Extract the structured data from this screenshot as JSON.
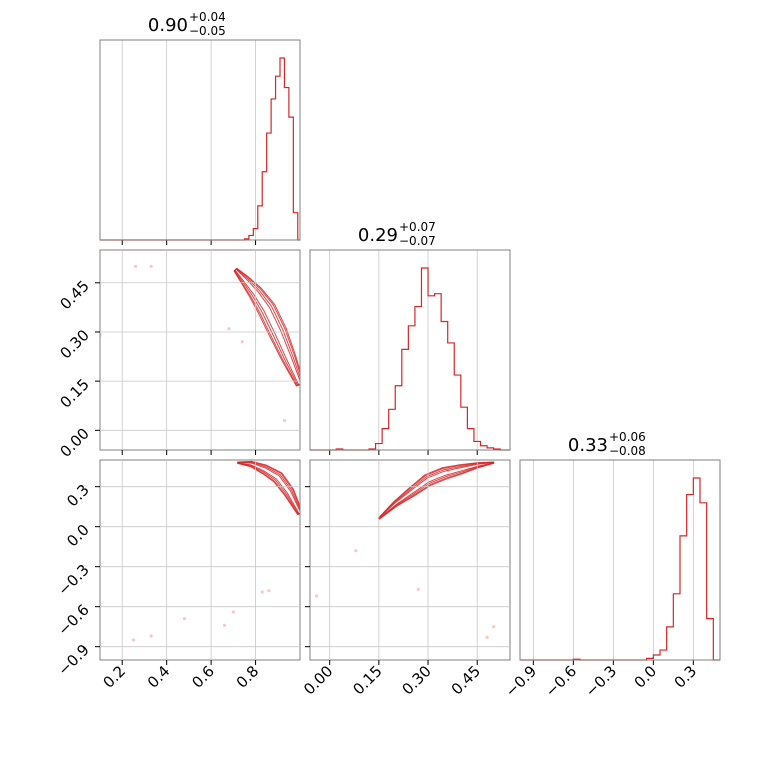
{
  "chart_data": {
    "type": "corner",
    "params": [
      {
        "title_main": "0.90",
        "title_plus": "+0.04",
        "title_minus": "−0.05",
        "range": [
          0.1,
          1.0
        ],
        "ticks": [
          0.2,
          0.4,
          0.6,
          0.8
        ],
        "tick_labels": [
          "0.2",
          "0.4",
          "0.6",
          "0.8"
        ],
        "hist": {
          "bins": [
            0.7,
            0.71,
            0.72,
            0.73,
            0.74,
            0.75,
            0.76,
            0.77,
            0.78,
            0.79,
            0.8,
            0.81,
            0.82,
            0.83,
            0.84,
            0.85,
            0.86,
            0.87,
            0.88,
            0.89,
            0.9,
            0.91,
            0.92,
            0.93,
            0.94,
            0.95,
            0.96,
            0.97,
            0.98,
            0.99,
            1.0
          ],
          "counts": [
            0,
            0,
            0,
            0,
            0,
            0.5,
            0.5,
            2,
            2,
            5,
            5,
            15,
            15,
            30,
            30,
            47,
            47,
            62,
            62,
            72,
            72,
            80,
            80,
            67,
            67,
            54,
            54,
            12,
            12,
            0
          ]
        }
      },
      {
        "title_main": "0.29",
        "title_plus": "+0.07",
        "title_minus": "−0.07",
        "range": [
          -0.06,
          0.55
        ],
        "ticks": [
          0.0,
          0.15,
          0.3,
          0.45
        ],
        "tick_labels": [
          "0.00",
          "0.15",
          "0.30",
          "0.45"
        ],
        "hist": {
          "bins": [
            -0.06,
            -0.04,
            -0.02,
            0.0,
            0.02,
            0.04,
            0.06,
            0.08,
            0.1,
            0.12,
            0.14,
            0.16,
            0.18,
            0.2,
            0.22,
            0.24,
            0.26,
            0.28,
            0.3,
            0.32,
            0.34,
            0.36,
            0.38,
            0.4,
            0.42,
            0.44,
            0.46,
            0.48,
            0.5,
            0.52,
            0.55
          ],
          "counts": [
            0,
            0,
            0,
            0,
            0.5,
            0,
            0,
            0,
            0,
            0.5,
            3,
            10,
            19,
            30,
            47,
            58,
            67,
            85,
            72,
            73,
            60,
            50,
            35,
            20,
            10,
            4,
            2,
            1,
            0.5,
            0
          ]
        }
      },
      {
        "title_main": "0.33",
        "title_plus": "+0.06",
        "title_minus": "−0.08",
        "range": [
          -1.0,
          0.5
        ],
        "ticks": [
          -0.9,
          -0.6,
          -0.3,
          0.0,
          0.3
        ],
        "tick_labels": [
          "−0.9",
          "−0.6",
          "−0.3",
          "0.0",
          "0.3"
        ],
        "hist": {
          "bins": [
            -1.0,
            -0.95,
            -0.9,
            -0.85,
            -0.8,
            -0.75,
            -0.7,
            -0.65,
            -0.6,
            -0.55,
            -0.5,
            -0.45,
            -0.4,
            -0.35,
            -0.3,
            -0.25,
            -0.2,
            -0.15,
            -0.1,
            -0.05,
            0.0,
            0.05,
            0.1,
            0.15,
            0.2,
            0.25,
            0.3,
            0.35,
            0.4,
            0.45,
            0.5
          ],
          "counts": [
            0,
            0,
            0,
            0,
            0,
            0,
            0,
            0,
            0.5,
            0,
            0,
            0,
            0,
            0,
            0,
            0,
            0,
            0,
            0,
            1,
            3,
            6,
            20,
            40,
            75,
            100,
            110,
            95,
            25,
            0
          ]
        }
      }
    ],
    "panels_2d": [
      {
        "x_param": 0,
        "y_param": 1,
        "y_ticks": [
          0.0,
          0.15,
          0.3,
          0.45
        ],
        "y_tick_labels": [
          "0.00",
          "0.15",
          "0.30",
          "0.45"
        ],
        "contour_center": [
          [
            0.71,
            0.49
          ],
          [
            0.75,
            0.46
          ],
          [
            0.8,
            0.42
          ],
          [
            0.85,
            0.37
          ],
          [
            0.9,
            0.3
          ],
          [
            0.95,
            0.22
          ],
          [
            1.0,
            0.14
          ]
        ],
        "contour_width": [
          0.006,
          0.014,
          0.022,
          0.028,
          0.028,
          0.022,
          0.012
        ],
        "contour_levels": [
          0.35,
          0.6,
          0.85,
          1.0
        ],
        "scatter": [
          [
            0.1,
            0.29
          ],
          [
            0.26,
            0.5
          ],
          [
            0.33,
            0.5
          ],
          [
            0.68,
            0.31
          ],
          [
            0.74,
            0.27
          ],
          [
            0.93,
            0.03
          ]
        ]
      },
      {
        "x_param": 0,
        "y_param": 2,
        "y_ticks": [
          -0.9,
          -0.6,
          -0.3,
          0.0,
          0.3
        ],
        "y_tick_labels": [
          "−0.9",
          "−0.6",
          "−0.3",
          "0.0",
          "0.3"
        ],
        "contour_center": [
          [
            0.72,
            0.48
          ],
          [
            0.78,
            0.47
          ],
          [
            0.84,
            0.43
          ],
          [
            0.9,
            0.37
          ],
          [
            0.95,
            0.26
          ],
          [
            1.0,
            0.1
          ]
        ],
        "contour_width": [
          0.005,
          0.02,
          0.035,
          0.045,
          0.04,
          0.02
        ],
        "contour_levels": [
          0.35,
          0.6,
          0.85,
          1.0
        ],
        "scatter": [
          [
            0.25,
            -0.85
          ],
          [
            0.33,
            -0.82
          ],
          [
            0.48,
            -0.69
          ],
          [
            0.66,
            -0.74
          ],
          [
            0.7,
            -0.64
          ],
          [
            0.83,
            -0.49
          ],
          [
            0.86,
            -0.48
          ]
        ]
      },
      {
        "x_param": 1,
        "y_param": 2,
        "y_ticks": [
          -0.9,
          -0.6,
          -0.3,
          0.0,
          0.3
        ],
        "y_tick_labels": [
          "−0.9",
          "−0.6",
          "−0.3",
          "0.0",
          "0.3"
        ],
        "contour_center": [
          [
            0.15,
            0.06
          ],
          [
            0.2,
            0.17
          ],
          [
            0.25,
            0.26
          ],
          [
            0.3,
            0.35
          ],
          [
            0.35,
            0.4
          ],
          [
            0.4,
            0.43
          ],
          [
            0.45,
            0.46
          ],
          [
            0.5,
            0.48
          ]
        ],
        "contour_width": [
          0.005,
          0.02,
          0.035,
          0.045,
          0.045,
          0.035,
          0.02,
          0.005
        ],
        "contour_levels": [
          0.35,
          0.6,
          0.85,
          1.0
        ],
        "scatter": [
          [
            -0.04,
            -0.52
          ],
          [
            0.08,
            -0.18
          ],
          [
            0.27,
            -0.47
          ],
          [
            0.36,
            0.42
          ],
          [
            0.48,
            -0.83
          ],
          [
            0.5,
            -0.75
          ]
        ]
      }
    ]
  }
}
